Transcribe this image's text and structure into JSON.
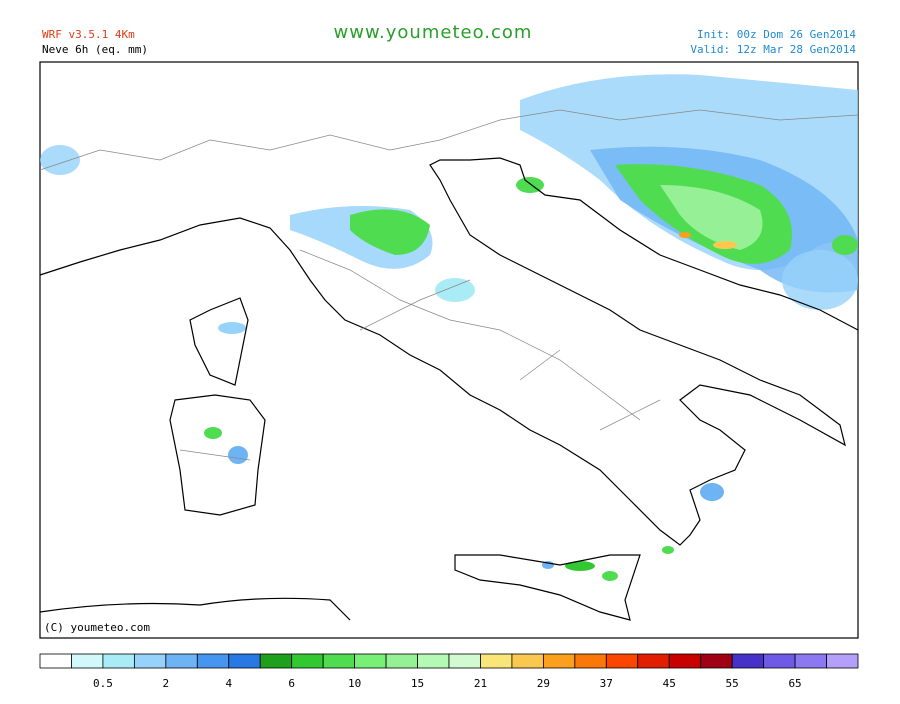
{
  "header": {
    "model": "WRF v3.5.1 4Km",
    "variable": "Neve 6h (eq. mm)",
    "site": "www.youmeteo.com",
    "init": "Init: 00z Dom 26 Gen2014",
    "valid": "Valid: 12z Mar  28 Gen2014"
  },
  "map": {
    "credit": "(C) youmeteo.com"
  },
  "legend": {
    "colors": [
      "#ffffff",
      "#d2f8fa",
      "#aaecf5",
      "#96d2fa",
      "#6eb4f5",
      "#4696f0",
      "#2878e6",
      "#1ea01e",
      "#32c832",
      "#50dc50",
      "#78f078",
      "#96f096",
      "#b4fab4",
      "#d2fad2",
      "#fae678",
      "#fac850",
      "#faa01e",
      "#fa780a",
      "#fa4600",
      "#e11e00",
      "#c80000",
      "#a00014",
      "#4632c8",
      "#6e5ae6",
      "#8c78f0",
      "#b4a0fa"
    ],
    "labels": [
      0.5,
      2,
      4,
      6,
      10,
      15,
      21,
      29,
      37,
      45,
      55,
      65
    ]
  }
}
